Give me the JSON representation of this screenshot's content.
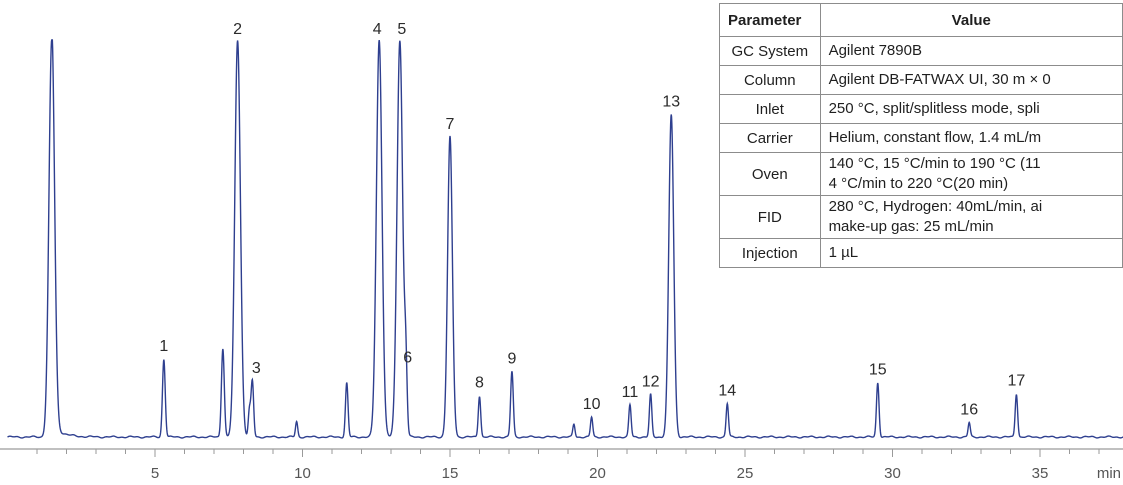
{
  "chart_data": {
    "type": "line",
    "x_unit": "min",
    "xlim": [
      0.0,
      38.0
    ],
    "x_ticks": [
      5,
      10,
      15,
      20,
      25,
      30,
      35
    ],
    "x_tick_labels": [
      "5",
      "10",
      "15",
      "20",
      "25",
      "30",
      "35"
    ],
    "baseline": 0,
    "peaks": [
      {
        "label": "",
        "x": 1.5,
        "height": 100
      },
      {
        "label": "1",
        "x": 5.3,
        "height": 19.6
      },
      {
        "label": "",
        "x": 7.3,
        "height": 22.4
      },
      {
        "label": "2",
        "x": 7.8,
        "height": 100
      },
      {
        "label": "",
        "x": 8.2,
        "height": 6.5
      },
      {
        "label": "3",
        "x": 8.3,
        "height": 14.1
      },
      {
        "label": "",
        "x": 9.8,
        "height": 3.9
      },
      {
        "label": "",
        "x": 11.5,
        "height": 13.6
      },
      {
        "label": "4",
        "x": 12.6,
        "height": 100
      },
      {
        "label": "5",
        "x": 13.3,
        "height": 100
      },
      {
        "label": "6",
        "x": 13.5,
        "height": 16.7
      },
      {
        "label": "7",
        "x": 15.0,
        "height": 75.6
      },
      {
        "label": "8",
        "x": 16.0,
        "height": 10.4
      },
      {
        "label": "9",
        "x": 17.1,
        "height": 16.5
      },
      {
        "label": "",
        "x": 19.2,
        "height": 3.2
      },
      {
        "label": "10",
        "x": 19.8,
        "height": 5.0
      },
      {
        "label": "11",
        "x": 21.1,
        "height": 8.1
      },
      {
        "label": "12",
        "x": 21.8,
        "height": 10.7
      },
      {
        "label": "13",
        "x": 22.5,
        "height": 81.2
      },
      {
        "label": "14",
        "x": 24.4,
        "height": 8.4
      },
      {
        "label": "15",
        "x": 29.5,
        "height": 13.7
      },
      {
        "label": "16",
        "x": 32.6,
        "height": 3.6
      },
      {
        "label": "17",
        "x": 34.2,
        "height": 10.9
      }
    ]
  },
  "table": {
    "headers": [
      "Parameter",
      "Value"
    ],
    "rows": [
      {
        "param": "GC System",
        "value": [
          "Agilent 7890B"
        ]
      },
      {
        "param": "Column",
        "value": [
          "Agilent DB-FATWAX UI, 30 m × 0"
        ]
      },
      {
        "param": "Inlet",
        "value": [
          "250 °C, split/splitless mode, spli"
        ]
      },
      {
        "param": "Carrier",
        "value": [
          "Helium, constant flow, 1.4 mL/m"
        ]
      },
      {
        "param": "Oven",
        "value": [
          "140 °C, 15 °C/min to 190 °C (11",
          "4 °C/min to 220 °C(20 min)"
        ]
      },
      {
        "param": "FID",
        "value": [
          "280 °C, Hydrogen: 40mL/min, ai",
          "make-up gas: 25 mL/min"
        ]
      },
      {
        "param": "Injection",
        "value": [
          "1 µL"
        ]
      }
    ]
  },
  "colors": {
    "trace": "#2e3f8f",
    "axis": "#9a9a9a",
    "table_border": "#8c8c8c"
  }
}
